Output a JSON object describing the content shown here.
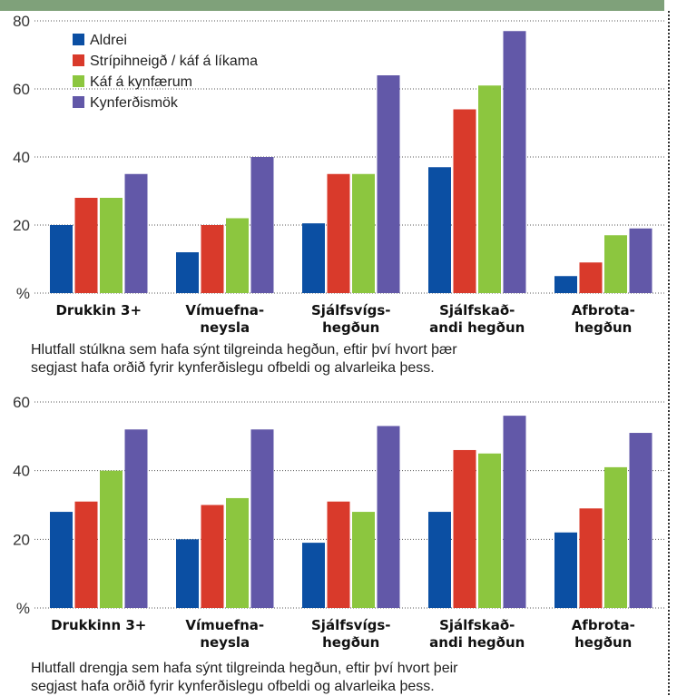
{
  "chart_data": [
    {
      "type": "bar",
      "categories": [
        [
          "Drukkin 3+"
        ],
        [
          "Vímuefna-",
          "neysla"
        ],
        [
          "Sjálfsvígs-",
          "hegðun"
        ],
        [
          "Sjálfskað-",
          "andi hegðun"
        ],
        [
          "Afbrota-",
          "hegðun"
        ]
      ],
      "series": [
        {
          "name": "Aldrei",
          "color": "#0b4fa3",
          "values": [
            20,
            12,
            20.5,
            37,
            5
          ]
        },
        {
          "name": "Strípihneigð / káf á líkama",
          "color": "#d93a2b",
          "values": [
            28,
            20,
            35,
            54,
            9
          ]
        },
        {
          "name": "Káf á kynfærum",
          "color": "#8cc63f",
          "values": [
            28,
            22,
            35,
            61,
            17
          ]
        },
        {
          "name": "Kynferðismök",
          "color": "#6258a8",
          "values": [
            35,
            40,
            64,
            77,
            19
          ]
        }
      ],
      "ylim": [
        0,
        80
      ],
      "yticks": [
        0,
        20,
        40,
        60,
        80
      ],
      "ytick_labels": [
        "%",
        "20",
        "40",
        "60",
        "80"
      ],
      "grid": "dotted",
      "legend_position": "top-left",
      "caption": [
        "Hlutfall stúlkna sem hafa sýnt tilgreinda hegðun, eftir því hvort þær",
        "segjast hafa orðið fyrir kynferðislegu ofbeldi og alvarleika þess."
      ]
    },
    {
      "type": "bar",
      "categories": [
        [
          "Drukkinn 3+"
        ],
        [
          "Vímuefna-",
          "neysla"
        ],
        [
          "Sjálfsvígs-",
          "hegðun"
        ],
        [
          "Sjálfskað-",
          "andi hegðun"
        ],
        [
          "Afbrota-",
          "hegðun"
        ]
      ],
      "series": [
        {
          "color": "#0b4fa3",
          "values": [
            28,
            20,
            19,
            28,
            22
          ]
        },
        {
          "color": "#d93a2b",
          "values": [
            31,
            30,
            31,
            46,
            29
          ]
        },
        {
          "color": "#8cc63f",
          "values": [
            40,
            32,
            28,
            45,
            41
          ]
        },
        {
          "color": "#6258a8",
          "values": [
            52,
            52,
            53,
            56,
            51
          ]
        }
      ],
      "ylim": [
        0,
        60
      ],
      "yticks": [
        0,
        20,
        40,
        60
      ],
      "ytick_labels": [
        "%",
        "20",
        "40",
        "60"
      ],
      "grid": "dotted",
      "caption": [
        "Hlutfall drengja sem hafa sýnt tilgreinda hegðun, eftir því hvort þeir",
        "segjast hafa orðið fyrir kynferðislegu ofbeldi og alvarleika þess."
      ]
    }
  ]
}
